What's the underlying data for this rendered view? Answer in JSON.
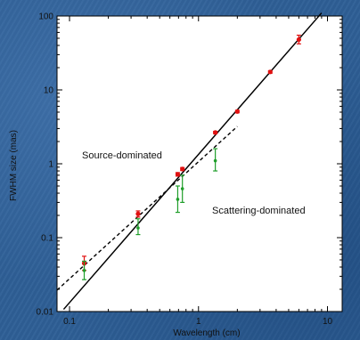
{
  "chart_data": {
    "type": "scatter",
    "xlabel": "Wavelength (cm)",
    "ylabel": "FWHM size (mas)",
    "xscale": "log",
    "yscale": "log",
    "xlim": [
      0.08,
      13
    ],
    "ylim": [
      0.01,
      100
    ],
    "x_tick_labels": [
      "0.1",
      "1",
      "10"
    ],
    "x_tick_values": [
      0.1,
      1,
      10
    ],
    "y_tick_labels": [
      "0.01",
      "0.1",
      "1",
      "10",
      "100"
    ],
    "y_tick_values": [
      0.01,
      0.1,
      1,
      10,
      100
    ],
    "grid": false,
    "annotations": {
      "source": "Source-dominated",
      "scattering": "Scattering-dominated"
    },
    "colors": {
      "source_points": "#e01010",
      "scatter_points": "#1f9e2a",
      "lines": "#000000",
      "plot_background": "#ffffff"
    },
    "series": [
      {
        "marker": "red-dot",
        "points": [
          {
            "x": 0.13,
            "y": 0.045,
            "err_lo": 0.036,
            "err_hi": 0.056
          },
          {
            "x": 0.34,
            "y": 0.21,
            "err_lo": 0.19,
            "err_hi": 0.23
          },
          {
            "x": 0.69,
            "y": 0.72,
            "err_lo": 0.68,
            "err_hi": 0.76
          },
          {
            "x": 0.75,
            "y": 0.85,
            "err_lo": 0.81,
            "err_hi": 0.89
          },
          {
            "x": 1.35,
            "y": 2.65,
            "err_lo": 2.55,
            "err_hi": 2.75
          },
          {
            "x": 2.0,
            "y": 5.1,
            "err_lo": 4.9,
            "err_hi": 5.3
          },
          {
            "x": 3.6,
            "y": 17.5,
            "err_lo": 16.8,
            "err_hi": 18.2
          },
          {
            "x": 6.0,
            "y": 48,
            "err_lo": 42,
            "err_hi": 55
          }
        ]
      },
      {
        "marker": "green-dot",
        "points": [
          {
            "x": 0.13,
            "y": 0.036,
            "err_lo": 0.027,
            "err_hi": 0.048
          },
          {
            "x": 0.34,
            "y": 0.135,
            "err_lo": 0.11,
            "err_hi": 0.18
          },
          {
            "x": 0.69,
            "y": 0.33,
            "err_lo": 0.22,
            "err_hi": 0.5
          },
          {
            "x": 0.75,
            "y": 0.46,
            "err_lo": 0.3,
            "err_hi": 0.7
          },
          {
            "x": 1.35,
            "y": 1.1,
            "err_lo": 0.8,
            "err_hi": 1.6
          }
        ]
      }
    ],
    "fit_lines": [
      {
        "style": "solid",
        "x": [
          0.09,
          9.0
        ],
        "y": [
          0.0107,
          110
        ]
      },
      {
        "style": "dashed",
        "x": [
          0.08,
          2.0
        ],
        "y": [
          0.0195,
          3.2
        ]
      }
    ]
  }
}
